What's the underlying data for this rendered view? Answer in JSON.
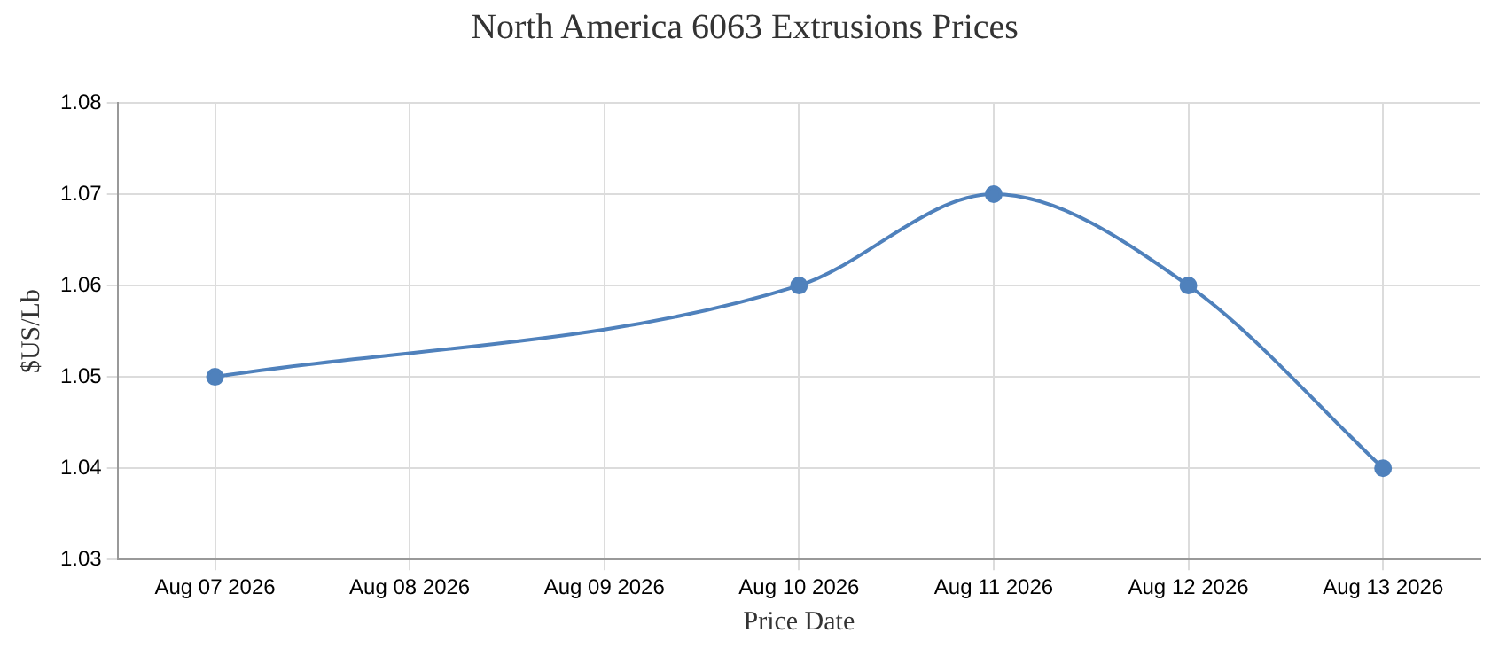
{
  "chart_data": {
    "type": "line",
    "title": "North America 6063 Extrusions Prices",
    "xlabel": "Price Date",
    "ylabel": "$US/Lb",
    "x": [
      "2026-08-07",
      "2026-08-10",
      "2026-08-11",
      "2026-08-12",
      "2026-08-13"
    ],
    "series": [
      {
        "color": "#4f81bc",
        "values": [
          1.05,
          1.06,
          1.07,
          1.06,
          1.04
        ]
      }
    ],
    "xlim": [
      "2026-08-06T12:00",
      "2026-08-13T12:00"
    ],
    "xticks": [
      {
        "value": "2026-08-07",
        "label": "Aug 07 2026"
      },
      {
        "value": "2026-08-08",
        "label": "Aug 08 2026"
      },
      {
        "value": "2026-08-09",
        "label": "Aug 09 2026"
      },
      {
        "value": "2026-08-10",
        "label": "Aug 10 2026"
      },
      {
        "value": "2026-08-11",
        "label": "Aug 11 2026"
      },
      {
        "value": "2026-08-12",
        "label": "Aug 12 2026"
      },
      {
        "value": "2026-08-13",
        "label": "Aug 13 2026"
      }
    ],
    "ylim": [
      1.03,
      1.08
    ],
    "yticks": [
      1.03,
      1.04,
      1.05,
      1.06,
      1.07,
      1.08
    ],
    "grid": true,
    "marker": "circle",
    "line_style": "solid",
    "legend": false
  }
}
